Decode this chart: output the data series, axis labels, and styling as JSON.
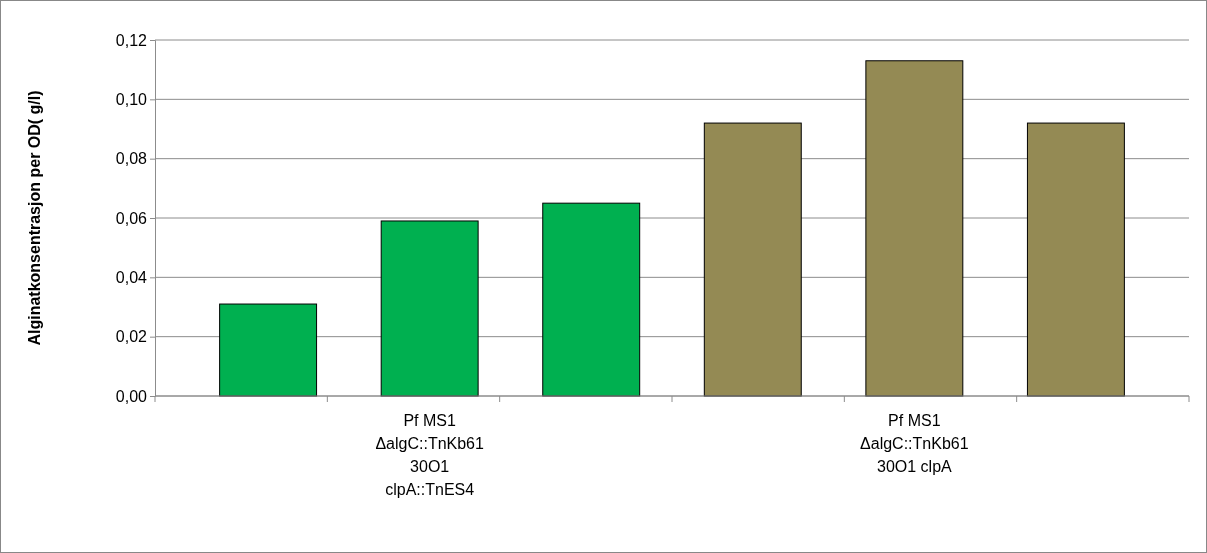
{
  "chart_data": {
    "type": "bar",
    "ylabel": "Alginatkonsentrasjon per OD( g/l)",
    "categories": [
      null,
      "Pf  MS1\nΔalgC::TnKb61\n30O1\nclpA::TnES4",
      null,
      null,
      "Pf  MS1\nΔalgC::TnKb61\n30O1 clpA",
      null
    ],
    "values": [
      0.031,
      0.059,
      0.065,
      0.092,
      0.113,
      0.092
    ],
    "colors": [
      "#00b050",
      "#00b050",
      "#00b050",
      "#948a54",
      "#948a54",
      "#948a54"
    ],
    "ylim": [
      0,
      0.12
    ],
    "yticks": [
      {
        "value": 0,
        "label": "0,00"
      },
      {
        "value": 0.02,
        "label": "0,02"
      },
      {
        "value": 0.04,
        "label": "0,04"
      },
      {
        "value": 0.06,
        "label": "0,06"
      },
      {
        "value": 0.08,
        "label": "0,08"
      },
      {
        "value": 0.1,
        "label": "0,10"
      },
      {
        "value": 0.12,
        "label": "0,12"
      }
    ],
    "grid": "y"
  }
}
